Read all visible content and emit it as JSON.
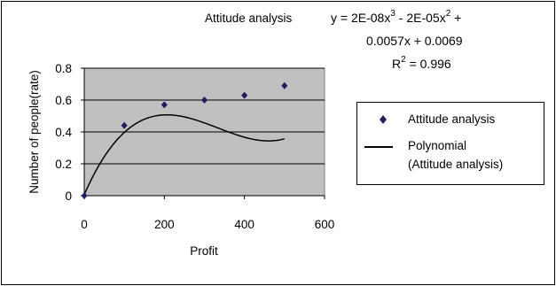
{
  "chart_data": {
    "type": "scatter",
    "title": "Attitude analysis",
    "xlabel": "Profit",
    "ylabel": "Number of people(rate)",
    "xlim": [
      0,
      600
    ],
    "ylim": [
      0,
      0.8
    ],
    "xticks": [
      "0",
      "200",
      "400",
      "600"
    ],
    "yticks": [
      "0",
      "0.2",
      "0.4",
      "0.6",
      "0.8"
    ],
    "plot_background": "#c0c0c0",
    "grid": "horizontal",
    "legend_position": "right",
    "series": [
      {
        "name": "Attitude analysis",
        "marker": "diamond",
        "color": "#1f1f5f",
        "x": [
          0,
          100,
          200,
          300,
          400,
          500
        ],
        "y": [
          0.0,
          0.44,
          0.57,
          0.6,
          0.63,
          0.69
        ]
      },
      {
        "name": "Polynomial (Attitude analysis)",
        "type": "line",
        "color": "#000000",
        "fit": "polynomial-3",
        "coefficients": {
          "a3": 2e-08,
          "a2": -2e-05,
          "a1": 0.0057,
          "a0": 0.0069
        },
        "x_range": [
          0,
          500
        ]
      }
    ],
    "annotation": {
      "equation_line1_prefix": "y = 2E-08x",
      "equation_exp1": "3",
      "equation_mid": "- 2E-05x",
      "equation_exp2": "2",
      "equation_end": "+",
      "equation_line2": "0.0057x + 0.0069",
      "r2_prefix": "R",
      "r2_exp": "2",
      "r2_value": "= 0.996"
    },
    "legend": {
      "entry1": "Attitude analysis",
      "entry2_line1": "Polynomial",
      "entry2_line2": "(Attitude analysis)"
    }
  }
}
